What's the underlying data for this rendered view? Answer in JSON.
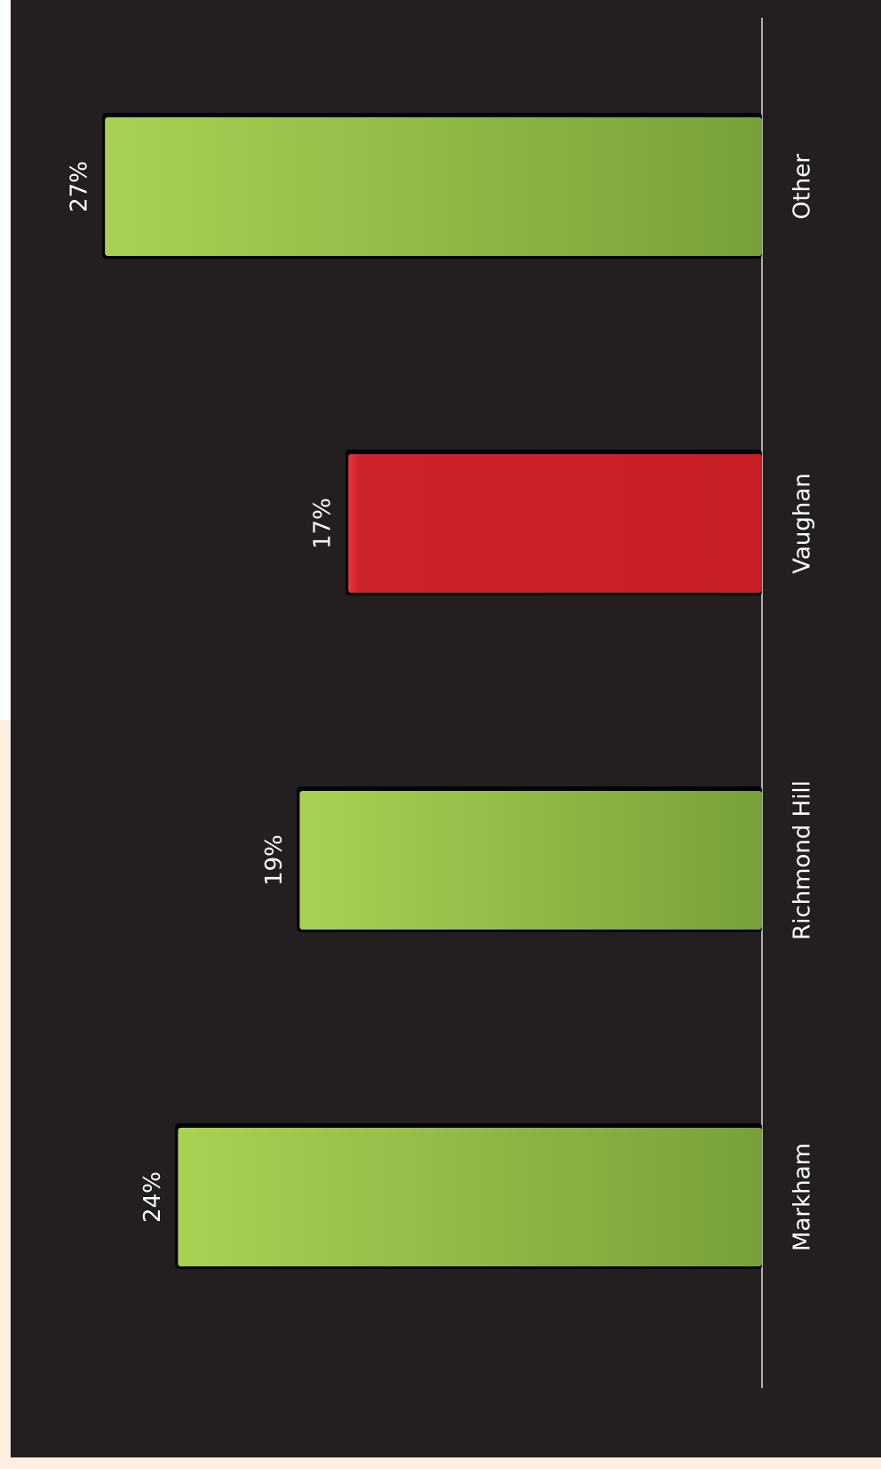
{
  "chart_data": {
    "type": "bar",
    "orientation": "rotated",
    "categories": [
      "Markham",
      "Richmond Hill",
      "Vaughan",
      "Other"
    ],
    "values": [
      24,
      19,
      17,
      27
    ],
    "value_labels": [
      "24%",
      "19%",
      "17%",
      "27%"
    ],
    "colors": [
      "#9cc447",
      "#9cc447",
      "#cc2229",
      "#9cc447"
    ]
  }
}
